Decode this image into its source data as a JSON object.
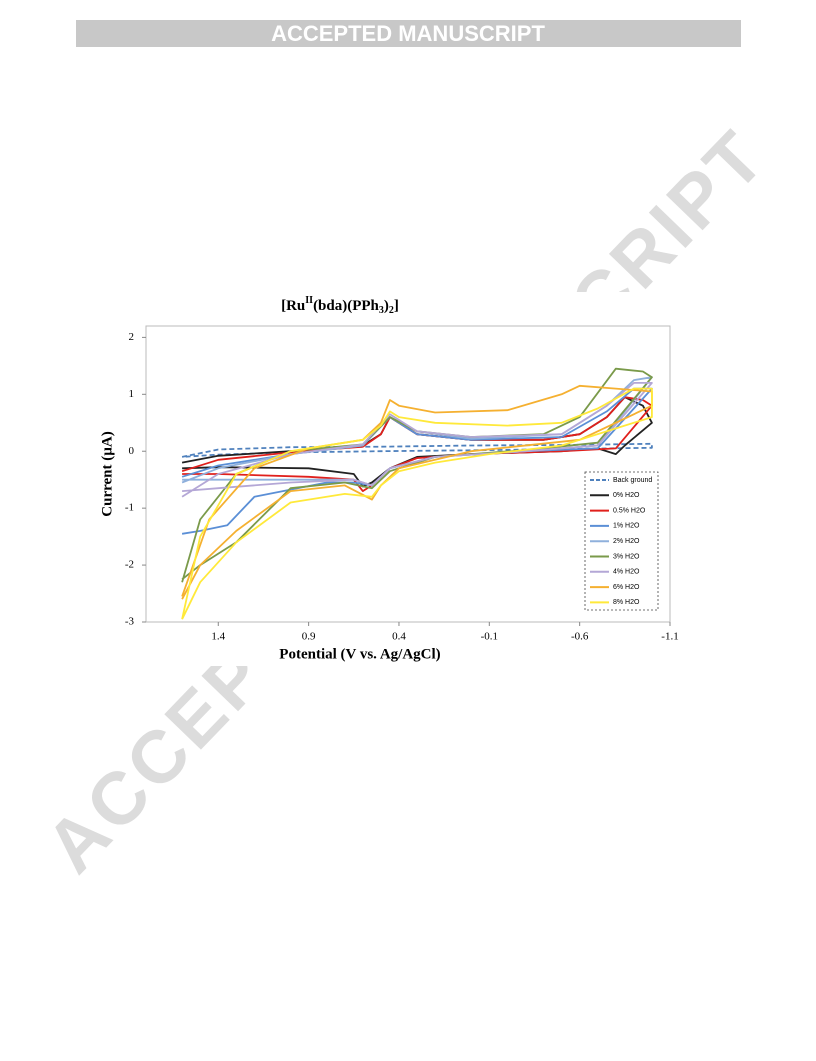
{
  "header": {
    "title": "ACCEPTED MANUSCRIPT"
  },
  "watermark": "ACCEPTED MANUSCRIPT",
  "chart_data": {
    "type": "line",
    "title": [
      "[Ru",
      "II",
      "(bda)(PPh",
      "3",
      ")",
      "2",
      "]"
    ],
    "x_label": "Potential (V vs. Ag/AgCl)",
    "y_label": "Current (µA)",
    "xlim": [
      1.8,
      -1.1
    ],
    "ylim": [
      -3,
      2.2
    ],
    "xticks": [
      1.4,
      0.9,
      0.4,
      -0.1,
      -0.6,
      -1.1
    ],
    "yticks": [
      2,
      1,
      0,
      -1,
      -2,
      -3
    ],
    "grid": false,
    "legend": "lower-right",
    "series": [
      {
        "name": "Back ground",
        "color": "#4f81bd",
        "dash": true,
        "x": [
          1.6,
          1.4,
          1.0,
          0.5,
          0,
          -0.5,
          -1.0,
          -1.0,
          -0.5,
          -0.1,
          0.5,
          1.0,
          1.4,
          1.6
        ],
        "values": [
          -0.1,
          0.03,
          0.07,
          0.08,
          0.1,
          0.11,
          0.13,
          0.06,
          0.04,
          0.02,
          0.0,
          -0.02,
          -0.06,
          -0.1
        ]
      },
      {
        "name": "0% H2O",
        "color": "#222222",
        "x": [
          1.6,
          1.4,
          1.0,
          0.6,
          0.5,
          0.45,
          0.4,
          0.3,
          0.0,
          -0.4,
          -0.6,
          -0.75,
          -0.85,
          -0.95,
          -1.0,
          -0.85,
          -0.8,
          -0.7,
          -0.5,
          0.0,
          0.3,
          0.45,
          0.55,
          0.6,
          0.65,
          0.9,
          1.4,
          1.6
        ],
        "values": [
          -0.2,
          -0.08,
          0.0,
          0.1,
          0.3,
          0.6,
          0.5,
          0.3,
          0.2,
          0.2,
          0.3,
          0.6,
          0.95,
          0.8,
          0.5,
          0.1,
          -0.05,
          0.05,
          0.0,
          -0.05,
          -0.1,
          -0.3,
          -0.55,
          -0.62,
          -0.4,
          -0.3,
          -0.28,
          -0.3
        ]
      },
      {
        "name": "0.5% H2O",
        "color": "#e0201c",
        "x": [
          1.6,
          1.4,
          1.0,
          0.6,
          0.5,
          0.45,
          0.4,
          0.3,
          0.0,
          -0.4,
          -0.6,
          -0.75,
          -0.85,
          -0.95,
          -1.0,
          -0.8,
          -0.5,
          0.0,
          0.3,
          0.45,
          0.55,
          0.6,
          0.65,
          0.9,
          1.4,
          1.6
        ],
        "values": [
          -0.35,
          -0.15,
          -0.02,
          0.08,
          0.3,
          0.6,
          0.5,
          0.3,
          0.2,
          0.2,
          0.3,
          0.6,
          0.95,
          0.9,
          0.8,
          0.05,
          0.0,
          -0.05,
          -0.12,
          -0.3,
          -0.6,
          -0.7,
          -0.5,
          -0.45,
          -0.4,
          -0.4
        ]
      },
      {
        "name": "1% H2O",
        "color": "#5b8fd6",
        "x": [
          1.6,
          1.4,
          1.0,
          0.6,
          0.45,
          0.3,
          0.0,
          -0.5,
          -0.75,
          -0.9,
          -1.0,
          -0.7,
          -0.3,
          0.2,
          0.45,
          0.55,
          0.65,
          0.8,
          1.2,
          1.35,
          1.5,
          1.6
        ],
        "values": [
          -0.45,
          -0.25,
          -0.05,
          0.1,
          0.6,
          0.3,
          0.2,
          0.25,
          0.7,
          1.1,
          1.1,
          0.05,
          0.0,
          -0.1,
          -0.3,
          -0.6,
          -0.55,
          -0.55,
          -0.8,
          -1.3,
          -1.4,
          -1.45
        ]
      },
      {
        "name": "2% H2O",
        "color": "#8fb0dc",
        "x": [
          1.6,
          1.4,
          1.0,
          0.6,
          0.45,
          0.3,
          0.0,
          -0.5,
          -0.75,
          -0.9,
          -1.0,
          -0.7,
          -0.3,
          0.2,
          0.45,
          0.55,
          0.65,
          1.0,
          1.4,
          1.6
        ],
        "values": [
          -0.55,
          -0.3,
          -0.05,
          0.1,
          0.6,
          0.35,
          0.22,
          0.3,
          0.8,
          1.25,
          1.3,
          0.1,
          0.0,
          -0.1,
          -0.3,
          -0.6,
          -0.5,
          -0.5,
          -0.5,
          -0.5
        ]
      },
      {
        "name": "3% H2O",
        "color": "#7a9a4a",
        "x": [
          1.6,
          1.5,
          1.3,
          1.0,
          0.6,
          0.45,
          0.3,
          0.0,
          -0.4,
          -0.6,
          -0.8,
          -0.95,
          -1.0,
          -0.7,
          -0.3,
          0.2,
          0.45,
          0.55,
          0.7,
          1.0,
          1.3,
          1.5,
          1.6
        ],
        "values": [
          -2.3,
          -1.2,
          -0.4,
          0.0,
          0.12,
          0.6,
          0.35,
          0.25,
          0.3,
          0.6,
          1.45,
          1.4,
          1.3,
          0.15,
          0.02,
          -0.1,
          -0.35,
          -0.65,
          -0.55,
          -0.65,
          -1.6,
          -2.0,
          -2.25
        ]
      },
      {
        "name": "4% H2O",
        "color": "#b4a7d6",
        "x": [
          1.6,
          1.4,
          1.0,
          0.6,
          0.45,
          0.3,
          0.0,
          -0.5,
          -0.75,
          -0.9,
          -1.0,
          -0.7,
          -0.3,
          0.2,
          0.45,
          0.55,
          0.65,
          1.0,
          1.4,
          1.6
        ],
        "values": [
          -0.8,
          -0.4,
          -0.05,
          0.12,
          0.65,
          0.35,
          0.25,
          0.3,
          0.8,
          1.2,
          1.2,
          0.1,
          0.0,
          -0.1,
          -0.3,
          -0.6,
          -0.5,
          -0.55,
          -0.65,
          -0.7
        ]
      },
      {
        "name": "6% H2O",
        "color": "#f5b030",
        "x": [
          1.6,
          1.45,
          1.2,
          0.9,
          0.6,
          0.5,
          0.45,
          0.4,
          0.2,
          -0.2,
          -0.5,
          -0.6,
          -0.8,
          -1.0,
          -1.0,
          -0.6,
          0.0,
          0.4,
          0.5,
          0.55,
          0.7,
          1.0,
          1.3,
          1.5,
          1.6
        ],
        "values": [
          -2.55,
          -1.2,
          -0.3,
          0.05,
          0.2,
          0.5,
          0.9,
          0.8,
          0.68,
          0.72,
          1.0,
          1.15,
          1.1,
          1.05,
          0.8,
          0.2,
          0.0,
          -0.3,
          -0.6,
          -0.85,
          -0.6,
          -0.7,
          -1.4,
          -2.0,
          -2.6
        ]
      },
      {
        "name": "8% H2O",
        "color": "#ffe93a",
        "x": [
          1.6,
          1.5,
          1.3,
          1.0,
          0.6,
          0.5,
          0.45,
          0.4,
          0.2,
          -0.2,
          -0.5,
          -0.7,
          -0.9,
          -1.0,
          -1.0,
          -0.5,
          -0.1,
          0.2,
          0.4,
          0.5,
          0.55,
          0.7,
          1.0,
          1.3,
          1.5,
          1.6
        ],
        "values": [
          -2.95,
          -1.5,
          -0.4,
          0.0,
          0.2,
          0.45,
          0.7,
          0.6,
          0.5,
          0.45,
          0.5,
          0.75,
          1.1,
          1.1,
          0.6,
          0.1,
          -0.05,
          -0.2,
          -0.35,
          -0.6,
          -0.8,
          -0.75,
          -0.9,
          -1.6,
          -2.3,
          -2.95
        ]
      }
    ]
  }
}
